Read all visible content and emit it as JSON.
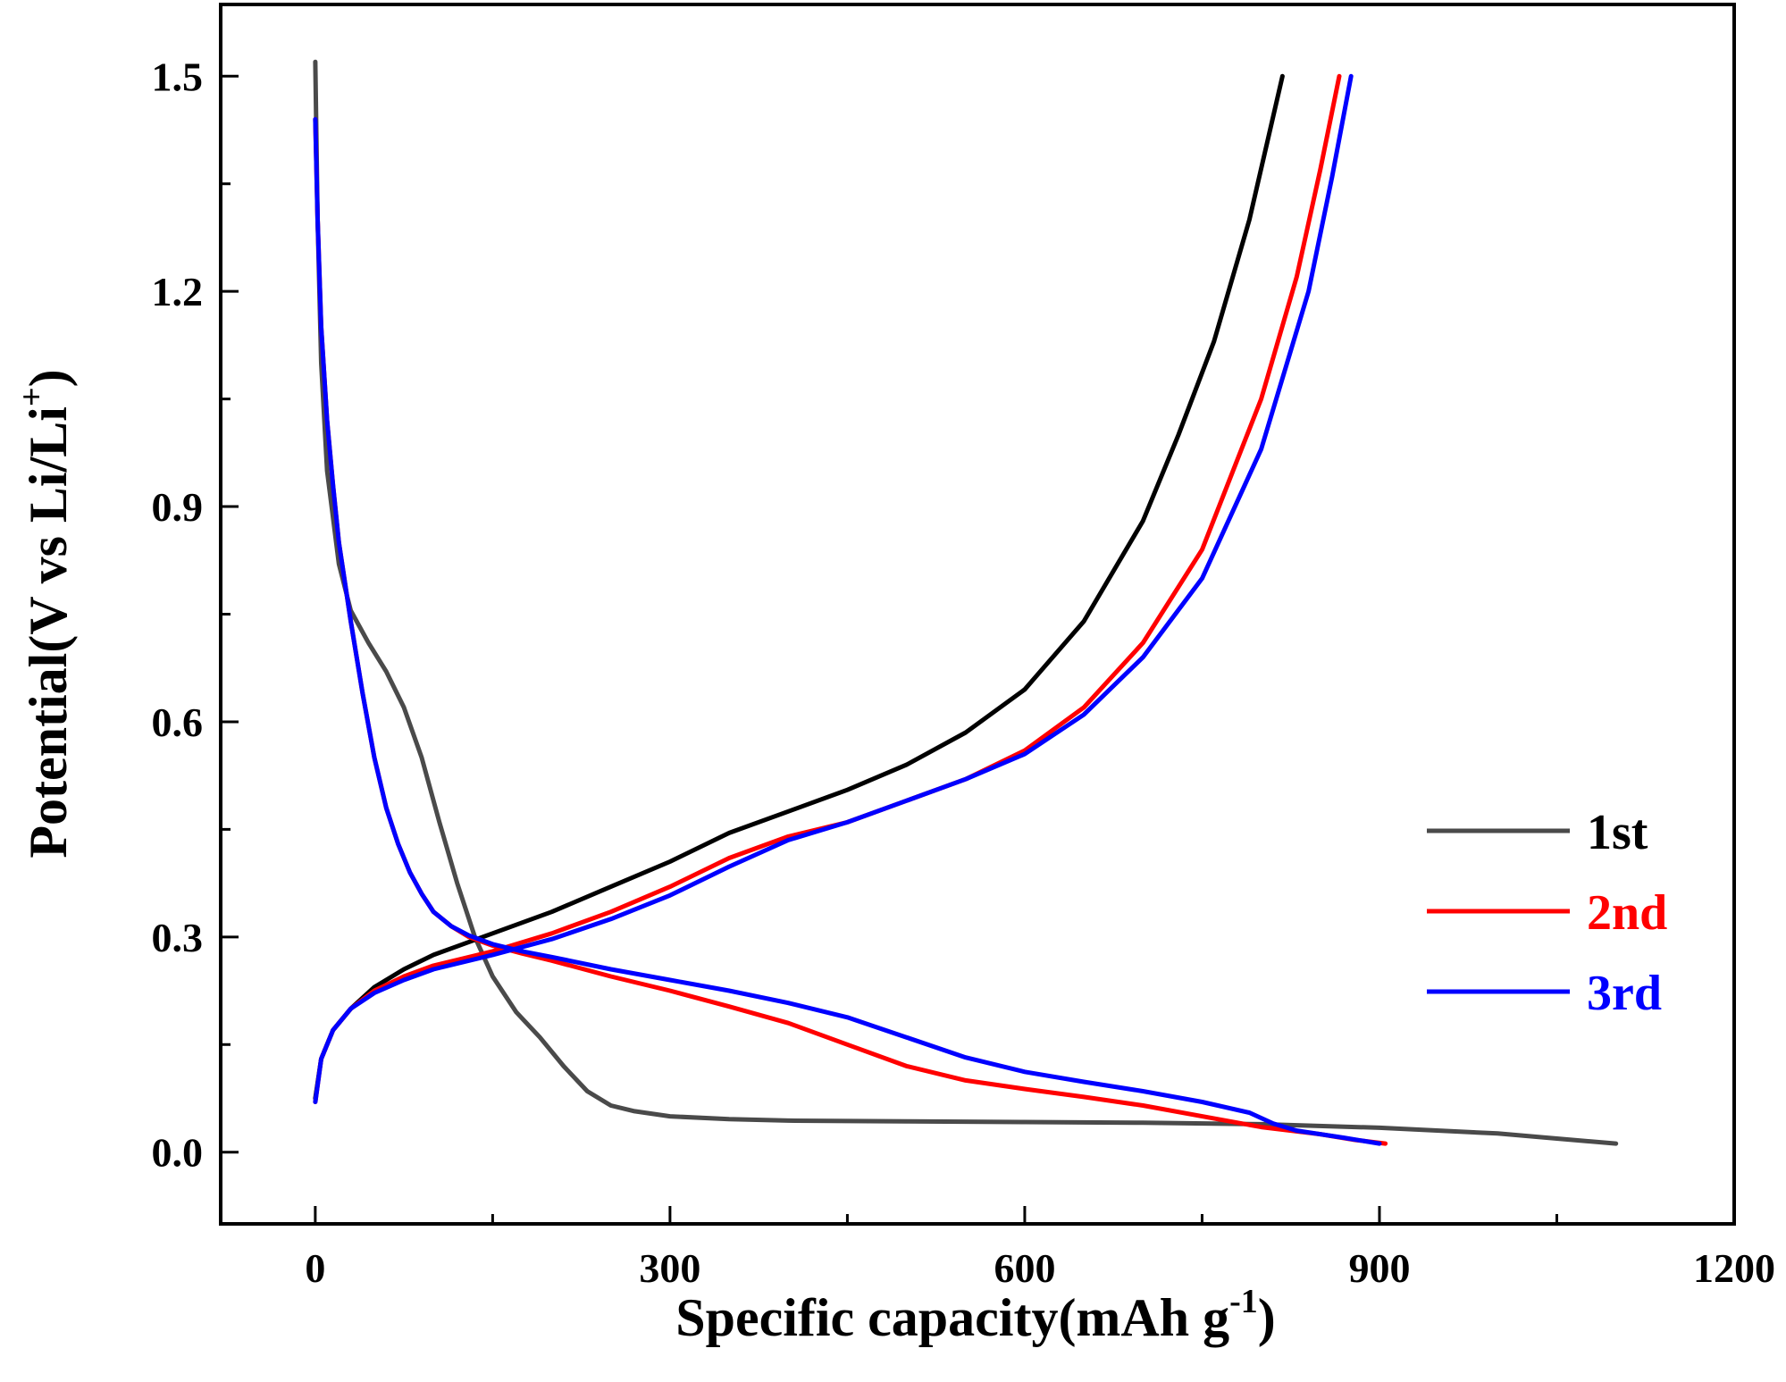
{
  "chart_data": {
    "type": "line",
    "title": "",
    "xlabel": "Specific capacity(mAh g",
    "xlabel_sup": "-1",
    "xlabel_end": ")",
    "ylabel": "Potential(V vs Li/Li",
    "ylabel_sup": "+",
    "ylabel_end": ")",
    "xlim": [
      -80,
      1200
    ],
    "ylim": [
      -0.1,
      1.6
    ],
    "x_ticks": [
      0,
      300,
      600,
      900,
      1200
    ],
    "x_minor_ticks": [
      150,
      450,
      750,
      1050
    ],
    "y_ticks": [
      0.0,
      0.3,
      0.6,
      0.9,
      1.2,
      1.5
    ],
    "y_minor_ticks": [
      0.15,
      0.45,
      0.75,
      1.05,
      1.35
    ],
    "x_tick_labels": [
      "0",
      "300",
      "600",
      "900",
      "1200"
    ],
    "y_tick_labels": [
      "0.0",
      "0.3",
      "0.6",
      "0.9",
      "1.2",
      "1.5"
    ],
    "grid": false,
    "legend_position": "right-middle",
    "series": [
      {
        "name": "1st",
        "color": "#4a4a4a",
        "discharge": {
          "x": [
            0,
            2,
            5,
            10,
            20,
            30,
            45,
            60,
            75,
            90,
            105,
            120,
            135,
            150,
            170,
            190,
            210,
            230,
            250,
            270,
            300,
            350,
            400,
            500,
            600,
            700,
            800,
            900,
            1000,
            1050,
            1100
          ],
          "y": [
            1.52,
            1.3,
            1.1,
            0.95,
            0.82,
            0.755,
            0.71,
            0.67,
            0.62,
            0.55,
            0.46,
            0.375,
            0.3,
            0.245,
            0.195,
            0.16,
            0.12,
            0.085,
            0.065,
            0.057,
            0.05,
            0.046,
            0.044,
            0.043,
            0.042,
            0.041,
            0.039,
            0.034,
            0.026,
            0.019,
            0.012
          ]
        },
        "charge": {
          "x": [
            0,
            5,
            15,
            30,
            50,
            75,
            100,
            150,
            200,
            250,
            300,
            350,
            400,
            450,
            500,
            550,
            600,
            650,
            700,
            730,
            760,
            790,
            818
          ],
          "y": [
            0.075,
            0.13,
            0.17,
            0.2,
            0.23,
            0.255,
            0.275,
            0.305,
            0.335,
            0.37,
            0.405,
            0.445,
            0.475,
            0.505,
            0.54,
            0.585,
            0.645,
            0.74,
            0.88,
            1.0,
            1.13,
            1.3,
            1.5
          ]
        }
      },
      {
        "name": "2nd",
        "color": "#ff0000",
        "discharge": {
          "x": [
            0,
            2,
            5,
            10,
            15,
            20,
            30,
            40,
            50,
            60,
            70,
            80,
            90,
            100,
            115,
            130,
            150,
            175,
            200,
            250,
            300,
            350,
            400,
            450,
            500,
            550,
            600,
            650,
            700,
            750,
            800,
            850,
            880,
            905
          ],
          "y": [
            1.44,
            1.3,
            1.15,
            1.02,
            0.93,
            0.85,
            0.74,
            0.64,
            0.55,
            0.48,
            0.43,
            0.39,
            0.36,
            0.335,
            0.315,
            0.3,
            0.288,
            0.277,
            0.267,
            0.245,
            0.225,
            0.203,
            0.18,
            0.15,
            0.12,
            0.1,
            0.088,
            0.077,
            0.065,
            0.05,
            0.035,
            0.025,
            0.017,
            0.012
          ]
        },
        "charge": {
          "x": [
            0,
            5,
            15,
            30,
            50,
            75,
            100,
            150,
            200,
            250,
            300,
            350,
            400,
            450,
            500,
            550,
            600,
            650,
            700,
            750,
            800,
            830,
            850,
            866
          ],
          "y": [
            0.07,
            0.13,
            0.17,
            0.2,
            0.225,
            0.245,
            0.26,
            0.28,
            0.305,
            0.335,
            0.37,
            0.41,
            0.44,
            0.46,
            0.49,
            0.52,
            0.56,
            0.62,
            0.71,
            0.84,
            1.05,
            1.22,
            1.37,
            1.5
          ]
        }
      },
      {
        "name": "3rd",
        "color": "#0000ff",
        "discharge": {
          "x": [
            0,
            2,
            5,
            10,
            15,
            20,
            30,
            40,
            50,
            60,
            70,
            80,
            90,
            100,
            115,
            130,
            150,
            175,
            200,
            250,
            300,
            350,
            400,
            450,
            500,
            550,
            600,
            650,
            700,
            750,
            790,
            810,
            830,
            870,
            900
          ],
          "y": [
            1.44,
            1.3,
            1.15,
            1.02,
            0.93,
            0.85,
            0.74,
            0.64,
            0.55,
            0.48,
            0.43,
            0.39,
            0.36,
            0.335,
            0.315,
            0.302,
            0.29,
            0.28,
            0.272,
            0.255,
            0.24,
            0.225,
            0.208,
            0.188,
            0.16,
            0.132,
            0.112,
            0.098,
            0.085,
            0.07,
            0.055,
            0.04,
            0.03,
            0.02,
            0.012
          ]
        },
        "charge": {
          "x": [
            0,
            5,
            15,
            30,
            50,
            75,
            100,
            150,
            200,
            250,
            300,
            350,
            400,
            450,
            500,
            550,
            600,
            650,
            700,
            750,
            800,
            840,
            860,
            876
          ],
          "y": [
            0.07,
            0.13,
            0.17,
            0.2,
            0.222,
            0.24,
            0.255,
            0.275,
            0.297,
            0.325,
            0.358,
            0.398,
            0.435,
            0.46,
            0.49,
            0.52,
            0.555,
            0.61,
            0.69,
            0.8,
            0.98,
            1.2,
            1.36,
            1.5
          ]
        }
      }
    ]
  }
}
